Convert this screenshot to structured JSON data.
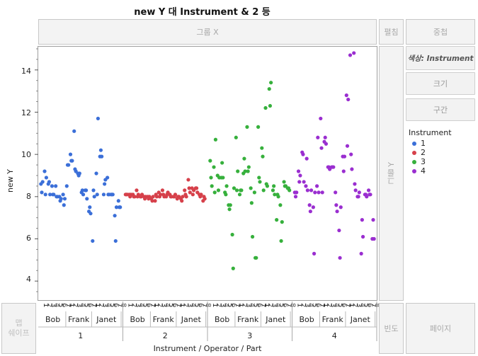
{
  "title": "new Y 대 Instrument & 2 등",
  "zones": {
    "group_x": "그룹 X",
    "wrap": "펼침",
    "overlay": "중첩",
    "group_y": "그룹 Y",
    "map_shape": "맵\n쉐이프",
    "freq": "빈도",
    "page": "페이지"
  },
  "side_buttons": {
    "color": "색상: Instrument",
    "size": "크기",
    "interval": "구간"
  },
  "legend": {
    "title": "Instrument",
    "items": [
      {
        "label": "1",
        "color": "#3b6fd8"
      },
      {
        "label": "2",
        "color": "#d6404a"
      },
      {
        "label": "3",
        "color": "#36b03c"
      },
      {
        "label": "4",
        "color": "#9a2ed0"
      }
    ]
  },
  "y_axis": {
    "label": "new Y",
    "ticks": [
      "4",
      "6",
      "8",
      "10",
      "12",
      "14"
    ]
  },
  "x_axis": {
    "label": "Instrument / Operator / Part",
    "part_ticks": [
      "1",
      "3",
      "5",
      "7",
      "1",
      "3",
      "5",
      "7",
      "1",
      "3",
      "5",
      "7"
    ],
    "operators": [
      "Bob",
      "Frank",
      "Janet"
    ],
    "instruments": [
      "1",
      "2",
      "3",
      "4"
    ]
  },
  "chart_data": {
    "type": "scatter",
    "ylabel": "new Y",
    "xlabel": "Instrument / Operator / Part",
    "ylim": [
      3.1,
      15.1
    ],
    "grid": false,
    "legend_position": "right",
    "series": [
      {
        "name": "1",
        "color": "#3b6fd8",
        "points": [
          [
            0,
            8.6
          ],
          [
            0,
            8.2
          ],
          [
            0,
            8.7
          ],
          [
            1,
            9.2
          ],
          [
            1,
            8.1
          ],
          [
            1,
            8.9
          ],
          [
            2,
            8.6
          ],
          [
            2,
            8.7
          ],
          [
            2,
            8.1
          ],
          [
            3,
            8.5
          ],
          [
            3,
            8.1
          ],
          [
            3,
            8.1
          ],
          [
            4,
            8.5
          ],
          [
            4,
            8.0
          ],
          [
            4,
            8.0
          ],
          [
            5,
            8.0
          ],
          [
            5,
            7.8
          ],
          [
            5,
            7.9
          ],
          [
            6,
            8.1
          ],
          [
            6,
            7.6
          ],
          [
            6,
            7.9
          ],
          [
            7,
            8.5
          ],
          [
            7,
            9.5
          ],
          [
            7,
            9.5
          ],
          [
            8,
            10.0
          ],
          [
            8,
            9.7
          ],
          [
            8,
            9.7
          ],
          [
            9,
            11.1
          ],
          [
            9,
            9.3
          ],
          [
            9,
            9.2
          ],
          [
            10,
            9.1
          ],
          [
            10,
            9.0
          ],
          [
            10,
            9.1
          ],
          [
            11,
            8.2
          ],
          [
            11,
            8.3
          ],
          [
            11,
            8.1
          ],
          [
            12,
            8.3
          ],
          [
            12,
            8.3
          ],
          [
            12,
            7.9
          ],
          [
            13,
            7.3
          ],
          [
            13,
            7.5
          ],
          [
            13,
            7.2
          ],
          [
            14,
            5.9
          ],
          [
            14,
            8.3
          ],
          [
            14,
            8.0
          ],
          [
            15,
            9.1
          ],
          [
            15,
            8.1
          ],
          [
            15,
            11.7
          ],
          [
            16,
            9.9
          ],
          [
            16,
            10.2
          ],
          [
            16,
            9.9
          ],
          [
            17,
            8.1
          ],
          [
            17,
            8.6
          ],
          [
            17,
            8.8
          ],
          [
            18,
            8.9
          ],
          [
            18,
            8.1
          ],
          [
            18,
            8.1
          ],
          [
            19,
            8.1
          ],
          [
            19,
            8.1
          ],
          [
            19,
            8.1
          ],
          [
            20,
            7.1
          ],
          [
            20,
            5.9
          ],
          [
            20,
            7.5
          ],
          [
            21,
            7.8
          ],
          [
            21,
            7.5
          ],
          [
            21,
            7.5
          ]
        ]
      },
      {
        "name": "2",
        "color": "#d6404a",
        "points": [
          [
            0,
            8.1
          ],
          [
            0,
            8.1
          ],
          [
            0,
            8.1
          ],
          [
            1,
            8.1
          ],
          [
            1,
            8.0
          ],
          [
            1,
            8.1
          ],
          [
            2,
            8.1
          ],
          [
            2,
            8.0
          ],
          [
            2,
            8.0
          ],
          [
            3,
            8.3
          ],
          [
            3,
            8.0
          ],
          [
            3,
            8.1
          ],
          [
            4,
            8.0
          ],
          [
            4,
            8.0
          ],
          [
            4,
            8.1
          ],
          [
            5,
            8.0
          ],
          [
            5,
            7.9
          ],
          [
            5,
            8.0
          ],
          [
            6,
            8.0
          ],
          [
            6,
            7.9
          ],
          [
            6,
            8.0
          ],
          [
            7,
            7.9
          ],
          [
            7,
            7.8
          ],
          [
            7,
            8.0
          ],
          [
            8,
            7.8
          ],
          [
            8,
            8.1
          ],
          [
            8,
            8.0
          ],
          [
            9,
            8.2
          ],
          [
            9,
            8.0
          ],
          [
            9,
            8.1
          ],
          [
            10,
            8.3
          ],
          [
            10,
            8.1
          ],
          [
            10,
            8.0
          ],
          [
            11,
            8.0
          ],
          [
            11,
            8.1
          ],
          [
            11,
            8.2
          ],
          [
            12,
            8.1
          ],
          [
            12,
            8.0
          ],
          [
            12,
            8.0
          ],
          [
            13,
            8.0
          ],
          [
            13,
            8.0
          ],
          [
            13,
            8.1
          ],
          [
            14,
            7.9
          ],
          [
            14,
            8.0
          ],
          [
            14,
            8.0
          ],
          [
            15,
            7.9
          ],
          [
            15,
            7.8
          ],
          [
            15,
            8.0
          ],
          [
            16,
            8.3
          ],
          [
            16,
            8.1
          ],
          [
            16,
            8.0
          ],
          [
            17,
            8.8
          ],
          [
            17,
            8.4
          ],
          [
            17,
            8.2
          ],
          [
            18,
            8.4
          ],
          [
            18,
            8.1
          ],
          [
            18,
            8.3
          ],
          [
            19,
            8.4
          ],
          [
            19,
            8.4
          ],
          [
            19,
            8.2
          ],
          [
            20,
            8.1
          ],
          [
            20,
            8.0
          ],
          [
            20,
            8.1
          ],
          [
            21,
            7.8
          ],
          [
            21,
            8.0
          ],
          [
            21,
            7.9
          ]
        ]
      },
      {
        "name": "3",
        "color": "#36b03c",
        "points": [
          [
            0,
            9.7
          ],
          [
            0,
            8.9
          ],
          [
            0,
            8.5
          ],
          [
            1,
            9.4
          ],
          [
            1,
            8.2
          ],
          [
            1,
            10.7
          ],
          [
            2,
            9.0
          ],
          [
            2,
            8.3
          ],
          [
            2,
            8.9
          ],
          [
            3,
            8.9
          ],
          [
            3,
            9.6
          ],
          [
            3,
            8.9
          ],
          [
            4,
            8.2
          ],
          [
            4,
            8.1
          ],
          [
            4,
            8.5
          ],
          [
            5,
            7.6
          ],
          [
            5,
            7.4
          ],
          [
            5,
            7.6
          ],
          [
            6,
            6.2
          ],
          [
            6,
            4.6
          ],
          [
            6,
            8.4
          ],
          [
            7,
            10.8
          ],
          [
            7,
            8.3
          ],
          [
            7,
            9.2
          ],
          [
            8,
            8.1
          ],
          [
            8,
            8.3
          ],
          [
            8,
            8.3
          ],
          [
            9,
            9.1
          ],
          [
            9,
            9.8
          ],
          [
            9,
            9.2
          ],
          [
            10,
            11.3
          ],
          [
            10,
            9.2
          ],
          [
            10,
            9.4
          ],
          [
            11,
            8.4
          ],
          [
            11,
            7.7
          ],
          [
            11,
            6.1
          ],
          [
            12,
            8.2
          ],
          [
            12,
            5.1
          ],
          [
            12,
            5.1
          ],
          [
            13,
            11.3
          ],
          [
            13,
            8.9
          ],
          [
            13,
            8.7
          ],
          [
            14,
            10.3
          ],
          [
            14,
            9.9
          ],
          [
            14,
            8.3
          ],
          [
            15,
            12.2
          ],
          [
            15,
            8.6
          ],
          [
            15,
            8.5
          ],
          [
            16,
            13.1
          ],
          [
            16,
            12.3
          ],
          [
            16,
            13.4
          ],
          [
            17,
            8.3
          ],
          [
            17,
            8.5
          ],
          [
            17,
            8.1
          ],
          [
            18,
            6.9
          ],
          [
            18,
            8.1
          ],
          [
            18,
            8.0
          ],
          [
            19,
            7.6
          ],
          [
            19,
            5.9
          ],
          [
            19,
            6.8
          ],
          [
            20,
            8.7
          ],
          [
            20,
            8.5
          ],
          [
            20,
            8.5
          ],
          [
            21,
            8.4
          ],
          [
            21,
            8.4
          ],
          [
            21,
            8.3
          ]
        ]
      },
      {
        "name": "4",
        "color": "#9a2ed0",
        "points": [
          [
            0,
            8.2
          ],
          [
            0,
            8.0
          ],
          [
            0,
            8.2
          ],
          [
            1,
            9.2
          ],
          [
            1,
            8.7
          ],
          [
            1,
            9.0
          ],
          [
            2,
            10.1
          ],
          [
            2,
            10.0
          ],
          [
            2,
            8.7
          ],
          [
            3,
            8.5
          ],
          [
            3,
            9.8
          ],
          [
            3,
            8.3
          ],
          [
            4,
            7.6
          ],
          [
            4,
            7.3
          ],
          [
            4,
            8.3
          ],
          [
            5,
            7.5
          ],
          [
            5,
            5.3
          ],
          [
            5,
            8.2
          ],
          [
            6,
            8.5
          ],
          [
            6,
            10.8
          ],
          [
            6,
            8.2
          ],
          [
            7,
            11.7
          ],
          [
            7,
            10.3
          ],
          [
            7,
            8.2
          ],
          [
            8,
            10.6
          ],
          [
            8,
            10.8
          ],
          [
            8,
            10.5
          ],
          [
            9,
            9.4
          ],
          [
            9,
            9.4
          ],
          [
            9,
            9.3
          ],
          [
            10,
            9.4
          ],
          [
            10,
            9.4
          ],
          [
            10,
            9.4
          ],
          [
            11,
            8.2
          ],
          [
            11,
            7.6
          ],
          [
            11,
            7.3
          ],
          [
            12,
            6.4
          ],
          [
            12,
            5.1
          ],
          [
            12,
            7.5
          ],
          [
            13,
            9.9
          ],
          [
            13,
            9.2
          ],
          [
            13,
            9.9
          ],
          [
            14,
            12.8
          ],
          [
            14,
            10.4
          ],
          [
            14,
            12.6
          ],
          [
            15,
            14.7
          ],
          [
            15,
            10.0
          ],
          [
            15,
            9.3
          ],
          [
            16,
            14.8
          ],
          [
            16,
            8.6
          ],
          [
            16,
            8.3
          ],
          [
            17,
            8.0
          ],
          [
            17,
            8.0
          ],
          [
            17,
            8.2
          ],
          [
            18,
            5.3
          ],
          [
            18,
            6.9
          ],
          [
            18,
            6.1
          ],
          [
            19,
            8.1
          ],
          [
            19,
            8.1
          ],
          [
            19,
            8.0
          ],
          [
            20,
            8.3
          ],
          [
            20,
            8.1
          ],
          [
            20,
            8.1
          ],
          [
            21,
            6.0
          ],
          [
            21,
            6.9
          ],
          [
            21,
            6.0
          ]
        ]
      }
    ]
  }
}
